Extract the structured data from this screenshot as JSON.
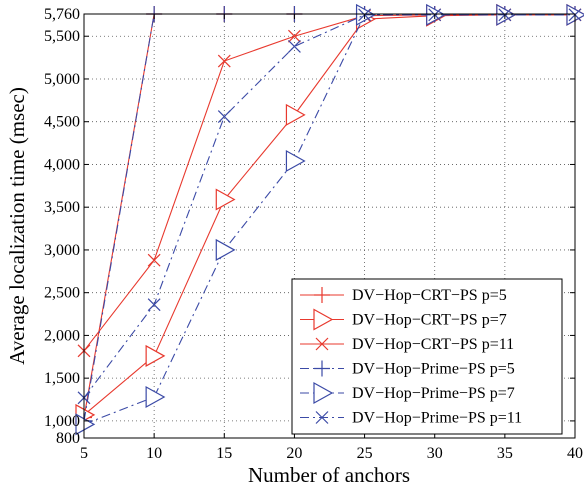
{
  "chart_data": {
    "type": "line",
    "title": "",
    "xlabel": "Number of anchors",
    "ylabel": "Average localization time (msec)",
    "xlim": [
      5,
      40
    ],
    "ylim": [
      800,
      5760
    ],
    "x_ticks": [
      "5",
      "10",
      "15",
      "20",
      "25",
      "30",
      "35",
      "40"
    ],
    "y_ticks": [
      {
        "value": 800,
        "label": "800"
      },
      {
        "value": 1000,
        "label": "1,000"
      },
      {
        "value": 1500,
        "label": "1,500"
      },
      {
        "value": 2000,
        "label": "2,000"
      },
      {
        "value": 2500,
        "label": "2,500"
      },
      {
        "value": 3000,
        "label": "3,000"
      },
      {
        "value": 3500,
        "label": "3,500"
      },
      {
        "value": 4000,
        "label": "4,000"
      },
      {
        "value": 4500,
        "label": "4,500"
      },
      {
        "value": 5000,
        "label": "5,000"
      },
      {
        "value": 5500,
        "label": "5,500"
      },
      {
        "value": 5760,
        "label": "5,760"
      }
    ],
    "grid": true,
    "legend_position": "bottom-right",
    "x": [
      5,
      10,
      15,
      20,
      25,
      30,
      35,
      40
    ],
    "series": [
      {
        "name": "DV−Hop−CRT−PS p=5",
        "color": "#e8392e",
        "dash": "solid",
        "marker": "plus",
        "values": [
          1040,
          5760,
          5760,
          5760,
          5760,
          5760,
          5760,
          5760
        ]
      },
      {
        "name": "DV−Hop−CRT−PS p=7",
        "color": "#e8392e",
        "dash": "solid",
        "marker": "triangle-right",
        "values": [
          1070,
          1760,
          3590,
          4580,
          5700,
          5740,
          5750,
          5750
        ]
      },
      {
        "name": "DV−Hop−CRT−PS p=11",
        "color": "#e8392e",
        "dash": "solid",
        "marker": "x",
        "values": [
          1820,
          2880,
          5210,
          5500,
          5740,
          5750,
          5750,
          5750
        ]
      },
      {
        "name": "DV−Hop−Prime−PS p=5",
        "color": "#3b4aa6",
        "dash": "dashdot",
        "marker": "plus",
        "values": [
          1000,
          5760,
          5760,
          5760,
          5760,
          5760,
          5760,
          5760
        ]
      },
      {
        "name": "DV−Hop−Prime−PS p=7",
        "color": "#3b4aa6",
        "dash": "dashdot",
        "marker": "triangle-right",
        "values": [
          960,
          1280,
          3000,
          4040,
          5750,
          5750,
          5750,
          5750
        ]
      },
      {
        "name": "DV−Hop−Prime−PS p=11",
        "color": "#3b4aa6",
        "dash": "dashdot",
        "marker": "x",
        "values": [
          1270,
          2360,
          4560,
          5380,
          5750,
          5750,
          5750,
          5750
        ]
      }
    ]
  }
}
